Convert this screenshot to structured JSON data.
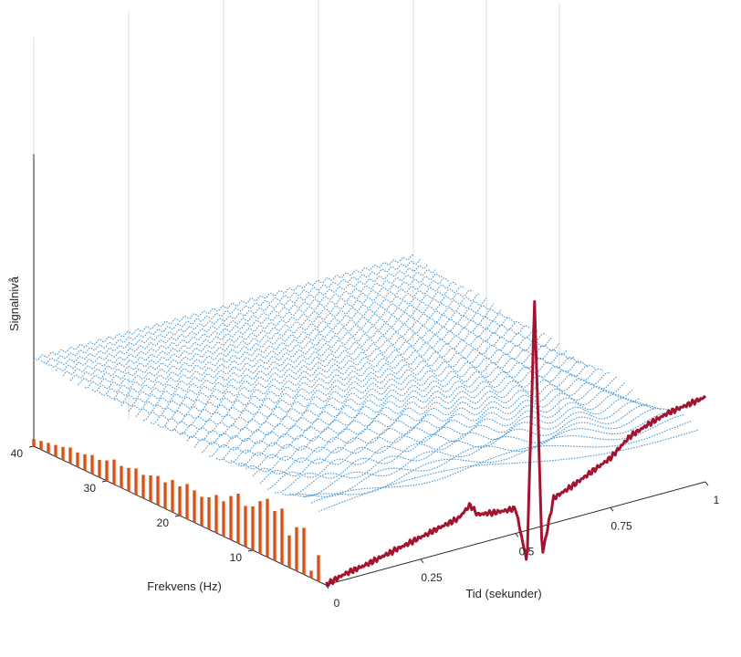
{
  "chart_data": {
    "type": "3d-line",
    "title": "",
    "xlabel": "Tid (sekunder)",
    "ylabel": "Frekvens (Hz)",
    "zlabel": "Signalnivå",
    "x_ticks": [
      "0",
      "0.25",
      "0.5",
      "0.75",
      "1"
    ],
    "y_ticks": [
      "10",
      "20",
      "30",
      "40"
    ],
    "z_ticks": [],
    "xlim": [
      0,
      1
    ],
    "ylim": [
      0,
      40
    ],
    "grid": true,
    "colors": {
      "signal": "#a2142f",
      "waves": "#4a97d2",
      "spectrum": "#d95319",
      "axis": "#262626",
      "grid": "#dcdcdc"
    },
    "series": [
      {
        "type": "line",
        "description": "time-domain signal at frequency 0",
        "x": [
          0,
          0.05,
          0.1,
          0.15,
          0.2,
          0.25,
          0.3,
          0.35,
          0.38,
          0.4,
          0.45,
          0.5,
          0.53,
          0.55,
          0.57,
          0.6,
          0.65,
          0.7,
          0.75,
          0.8,
          0.85,
          0.9,
          0.95,
          1.0
        ],
        "y": [
          0,
          0.04,
          0.06,
          0.09,
          0.12,
          0.15,
          0.18,
          0.21,
          0.28,
          0.2,
          0.18,
          0.17,
          -0.22,
          1.55,
          -0.2,
          0.17,
          0.22,
          0.28,
          0.34,
          0.45,
          0.5,
          0.54,
          0.56,
          0.58
        ]
      },
      {
        "type": "spectrum-bars",
        "description": "spectrum magnitude per frequency at time 0",
        "frequencies": [
          1,
          2,
          3,
          4,
          5,
          6,
          7,
          8,
          9,
          10,
          11,
          12,
          13,
          14,
          15,
          16,
          17,
          18,
          19,
          20,
          21,
          22,
          23,
          24,
          25,
          26,
          27,
          28,
          29,
          30,
          31,
          32,
          33,
          34,
          35,
          36,
          37,
          38,
          39,
          40
        ],
        "values": [
          0.18,
          0.05,
          0.32,
          0.3,
          0.22,
          0.38,
          0.34,
          0.4,
          0.36,
          0.3,
          0.28,
          0.34,
          0.3,
          0.24,
          0.26,
          0.22,
          0.2,
          0.22,
          0.24,
          0.2,
          0.22,
          0.18,
          0.2,
          0.18,
          0.16,
          0.18,
          0.16,
          0.15,
          0.17,
          0.14,
          0.12,
          0.13,
          0.11,
          0.1,
          0.11,
          0.09,
          0.08,
          0.07,
          0.06,
          0.05
        ]
      }
    ]
  }
}
